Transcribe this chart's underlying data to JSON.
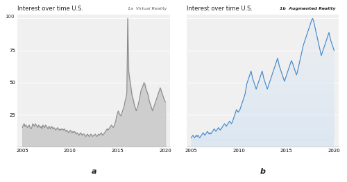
{
  "title": "Interest over time U.S.",
  "label_vr": "1a  Virtual Reality",
  "label_ar": "1b  Augmented Reality",
  "xlabel_a": "a",
  "xlabel_b": "b",
  "xlim": [
    2004.5,
    2020.5
  ],
  "ylim_vr": [
    0,
    103
  ],
  "ylim_ar": [
    0,
    103
  ],
  "yticks_vr": [
    25,
    50,
    75,
    100
  ],
  "yticks_ar": [
    25,
    50,
    75,
    100
  ],
  "xticks": [
    2005,
    2010,
    2015,
    2020
  ],
  "bg_color": "#f0f0f0",
  "fig_bg": "#ffffff",
  "vr_line_color": "#888888",
  "vr_fill_color": "#c8c8c8",
  "ar_line_color": "#4488cc",
  "ar_fill_color": "#cce0f5",
  "vr_data": [
    15,
    17,
    18,
    16,
    17,
    16,
    15,
    16,
    17,
    15,
    14,
    15,
    18,
    17,
    16,
    18,
    17,
    16,
    15,
    17,
    16,
    15,
    16,
    14,
    17,
    16,
    15,
    17,
    16,
    15,
    14,
    16,
    15,
    14,
    16,
    15,
    14,
    15,
    14,
    13,
    14,
    15,
    14,
    13,
    14,
    13,
    14,
    14,
    13,
    14,
    13,
    12,
    13,
    12,
    11,
    12,
    13,
    12,
    11,
    12,
    11,
    12,
    11,
    10,
    11,
    10,
    9,
    10,
    11,
    10,
    9,
    10,
    10,
    9,
    8,
    9,
    10,
    9,
    8,
    9,
    10,
    9,
    8,
    9,
    9,
    10,
    9,
    8,
    9,
    10,
    9,
    10,
    11,
    10,
    9,
    10,
    11,
    12,
    13,
    14,
    13,
    14,
    15,
    16,
    17,
    16,
    15,
    16,
    18,
    20,
    24,
    26,
    28,
    26,
    25,
    24,
    26,
    28,
    30,
    32,
    36,
    38,
    42,
    100,
    60,
    54,
    50,
    45,
    40,
    38,
    35,
    32,
    30,
    28,
    30,
    32,
    35,
    38,
    42,
    45,
    46,
    48,
    50,
    49,
    46,
    44,
    42,
    40,
    36,
    34,
    32,
    30,
    28,
    30,
    32,
    34,
    36,
    38,
    40,
    42,
    44,
    46,
    44,
    42,
    40,
    38,
    36,
    35
  ],
  "ar_data": [
    7,
    8,
    9,
    8,
    7,
    8,
    9,
    8,
    9,
    8,
    7,
    8,
    9,
    10,
    11,
    10,
    9,
    10,
    11,
    12,
    11,
    10,
    11,
    10,
    11,
    12,
    13,
    14,
    13,
    12,
    13,
    14,
    15,
    14,
    13,
    14,
    15,
    16,
    17,
    18,
    17,
    16,
    17,
    18,
    19,
    20,
    19,
    18,
    19,
    21,
    23,
    25,
    27,
    29,
    28,
    27,
    28,
    29,
    31,
    33,
    35,
    37,
    39,
    41,
    45,
    49,
    51,
    53,
    55,
    57,
    59,
    56,
    53,
    51,
    49,
    47,
    45,
    47,
    49,
    51,
    53,
    55,
    57,
    59,
    56,
    53,
    51,
    49,
    47,
    45,
    47,
    49,
    51,
    53,
    55,
    57,
    59,
    61,
    63,
    65,
    67,
    69,
    66,
    63,
    61,
    59,
    57,
    55,
    53,
    51,
    53,
    55,
    57,
    59,
    61,
    63,
    65,
    67,
    66,
    64,
    62,
    60,
    58,
    56,
    58,
    61,
    64,
    67,
    70,
    73,
    76,
    79,
    81,
    83,
    85,
    87,
    89,
    91,
    93,
    95,
    97,
    99,
    100,
    98,
    95,
    92,
    89,
    86,
    83,
    80,
    77,
    74,
    71,
    73,
    75,
    77,
    79,
    81,
    83,
    85,
    87,
    89,
    86,
    83,
    81,
    79,
    77,
    75
  ]
}
